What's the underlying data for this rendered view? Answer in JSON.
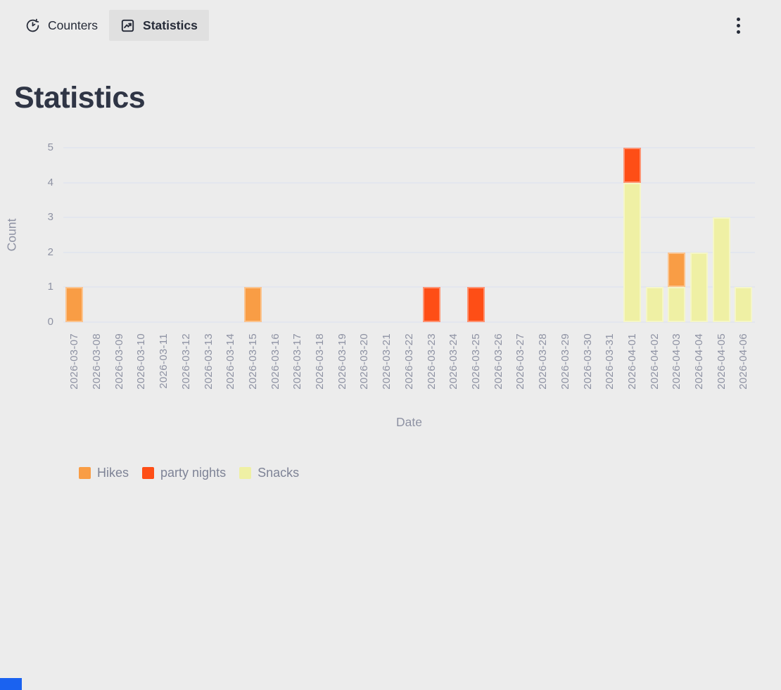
{
  "header": {
    "tabs": [
      {
        "label": "Counters",
        "icon": "counter-clock-icon",
        "active": false
      },
      {
        "label": "Statistics",
        "icon": "trend-chart-icon",
        "active": true
      }
    ],
    "menu_icon": "kebab-menu-icon"
  },
  "page": {
    "title": "Statistics"
  },
  "chart_data": {
    "type": "bar",
    "stacked": true,
    "title": "",
    "xlabel": "Date",
    "ylabel": "Count",
    "ylim": [
      0,
      5
    ],
    "yticks": [
      0,
      1,
      2,
      3,
      4,
      5
    ],
    "grid": true,
    "legend_position": "bottom-left",
    "categories": [
      "2026-03-07",
      "2026-03-08",
      "2026-03-09",
      "2026-03-10",
      "2026-03-11",
      "2026-03-12",
      "2026-03-13",
      "2026-03-14",
      "2026-03-15",
      "2026-03-16",
      "2026-03-17",
      "2026-03-18",
      "2026-03-19",
      "2026-03-20",
      "2026-03-21",
      "2026-03-22",
      "2026-03-23",
      "2026-03-24",
      "2026-03-25",
      "2026-03-26",
      "2026-03-27",
      "2026-03-28",
      "2026-03-29",
      "2026-03-30",
      "2026-03-31",
      "2026-04-01",
      "2026-04-02",
      "2026-04-03",
      "2026-04-04",
      "2026-04-05",
      "2026-04-06"
    ],
    "series": [
      {
        "name": "Hikes",
        "color": "#f99d45",
        "values": [
          1,
          0,
          0,
          0,
          0,
          0,
          0,
          0,
          1,
          0,
          0,
          0,
          0,
          0,
          0,
          0,
          0,
          0,
          0,
          0,
          0,
          0,
          0,
          0,
          0,
          0,
          0,
          1,
          0,
          0,
          0
        ]
      },
      {
        "name": "party nights",
        "color": "#fe4e16",
        "values": [
          0,
          0,
          0,
          0,
          0,
          0,
          0,
          0,
          0,
          0,
          0,
          0,
          0,
          0,
          0,
          0,
          1,
          0,
          1,
          0,
          0,
          0,
          0,
          0,
          0,
          1,
          0,
          0,
          0,
          0,
          0
        ]
      },
      {
        "name": "Snacks",
        "color": "#eff0a4",
        "values": [
          0,
          0,
          0,
          0,
          0,
          0,
          0,
          0,
          0,
          0,
          0,
          0,
          0,
          0,
          0,
          0,
          0,
          0,
          0,
          0,
          0,
          0,
          0,
          0,
          0,
          4,
          1,
          1,
          2,
          3,
          1
        ]
      }
    ],
    "stack_order_bottom_to_top": [
      "Snacks",
      "Hikes",
      "party nights"
    ]
  },
  "colors": {
    "background": "#ececec",
    "active_tab_bg": "#e0e0e0",
    "dark_text": "#262b38",
    "heading_text": "#2f3545",
    "axis_text": "#8e92a3",
    "legend_text": "#7e8396",
    "gridline": "#e3e6ee",
    "bottom_left_accent": "#1a62f0"
  }
}
